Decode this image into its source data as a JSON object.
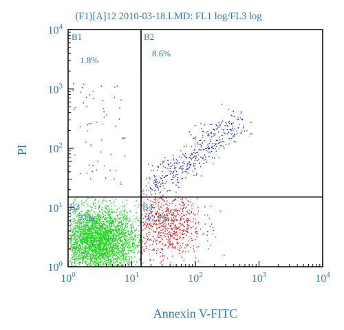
{
  "colors": {
    "text": "#2f78b8",
    "frame": "#000000",
    "q1": "#1b2fb5",
    "q2": "#1b2fb5",
    "q3": "#1ed61e",
    "q4": "#e01818"
  },
  "chart_data": {
    "type": "scatter",
    "title": "(F1)[A]12 2010-03-18.LMD: FL1 log/FL3 log",
    "xlabel": "Annexin V-FITC",
    "ylabel": "PI",
    "xscale": "log",
    "yscale": "log",
    "xlim": [
      1,
      10000
    ],
    "ylim": [
      1,
      10000
    ],
    "x_ticks": [
      {
        "base": "10",
        "exp": "0",
        "value": 1
      },
      {
        "base": "10",
        "exp": "1",
        "value": 10
      },
      {
        "base": "10",
        "exp": "2",
        "value": 100
      },
      {
        "base": "10",
        "exp": "3",
        "value": 1000
      },
      {
        "base": "10",
        "exp": "4",
        "value": 10000
      }
    ],
    "y_ticks": [
      {
        "base": "10",
        "exp": "0",
        "value": 1
      },
      {
        "base": "10",
        "exp": "1",
        "value": 10
      },
      {
        "base": "10",
        "exp": "2",
        "value": 100
      },
      {
        "base": "10",
        "exp": "3",
        "value": 1000
      },
      {
        "base": "10",
        "exp": "4",
        "value": 10000
      }
    ],
    "gates": {
      "x": 14,
      "y": 15
    },
    "quadrants": [
      {
        "name": "B1",
        "percent": "1.8%"
      },
      {
        "name": "B2",
        "percent": "8.6%"
      },
      {
        "name": "B3",
        "percent": "77%"
      },
      {
        "name": "B4",
        "percent": "12.7%"
      }
    ],
    "populations": [
      {
        "quadrant": "B1",
        "color": "#1b2fb5",
        "density": "sparse",
        "center_log": [
          0.45,
          2.3
        ],
        "spread_log": [
          0.3,
          0.55
        ],
        "count": 60
      },
      {
        "quadrant": "B2",
        "color": "#1b2fb5",
        "density": "diagonal",
        "center_log": [
          2.15,
          1.55
        ],
        "spread_log": [
          0.45,
          0.35
        ],
        "count": 420
      },
      {
        "quadrant": "B3",
        "color": "#1ed61e",
        "density": "dense",
        "center_log": [
          0.45,
          0.45
        ],
        "spread_log": [
          0.32,
          0.28
        ],
        "count": 3000
      },
      {
        "quadrant": "B4",
        "color": "#e01818",
        "density": "medium",
        "center_log": [
          1.55,
          0.75
        ],
        "spread_log": [
          0.28,
          0.32
        ],
        "count": 650
      }
    ],
    "grid": false,
    "legend": "none"
  }
}
